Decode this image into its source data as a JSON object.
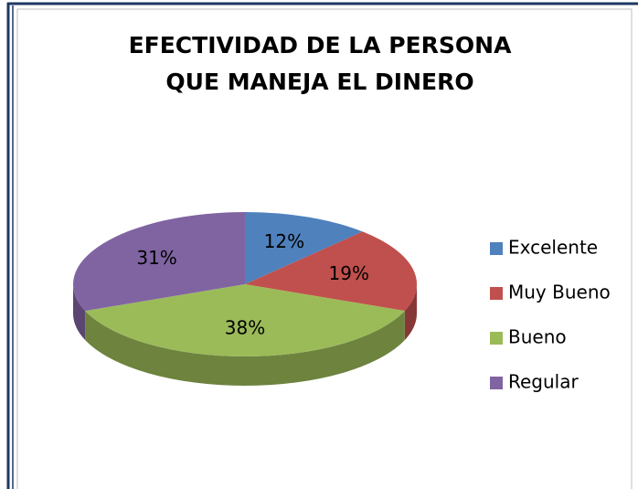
{
  "chart_data": {
    "type": "pie",
    "title": "EFECTIVIDAD DE LA PERSONA QUE MANEJA EL DINERO",
    "categories": [
      "Excelente",
      "Muy Bueno",
      "Bueno",
      "Regular"
    ],
    "values": [
      12,
      19,
      38,
      31
    ],
    "value_labels": [
      "12%",
      "19%",
      "38%",
      "31%"
    ],
    "colors": [
      "#4f81bd",
      "#c0504d",
      "#9bbb59",
      "#8064a2"
    ],
    "legend": "right"
  }
}
